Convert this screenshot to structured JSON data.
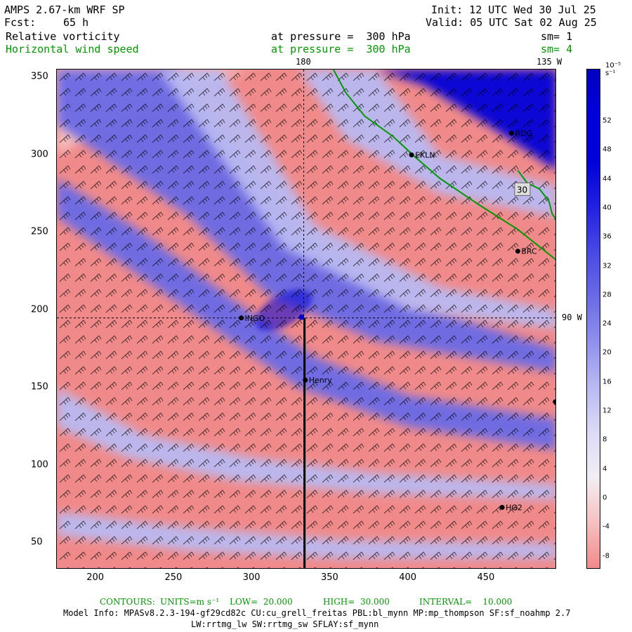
{
  "header": {
    "model": "AMPS 2.67-km WRF SP",
    "fcst_label": "Fcst:",
    "fcst_value": "65 h",
    "init": "Init: 12 UTC Wed 30 Jul 25",
    "valid": "Valid: 05 UTC Sat 02 Aug 25",
    "field1": "Relative vorticity",
    "field1_pressure": "at pressure =  300 hPa",
    "field1_sm": "sm= 1",
    "field2": "Horizontal wind speed",
    "field2_pressure": "at pressure =  300 hPa",
    "field2_sm": "sm= 4"
  },
  "map": {
    "lon_labels": {
      "lon180": "180",
      "lon135": "135 W",
      "lon90": "90 W"
    },
    "x_ticks": [
      "200",
      "250",
      "300",
      "350",
      "400",
      "450"
    ],
    "y_ticks": [
      "350",
      "300",
      "250",
      "200",
      "150",
      "100",
      "50"
    ],
    "x_range": [
      175,
      495
    ],
    "y_range": [
      33,
      355
    ],
    "stations": [
      {
        "label": "RDG",
        "x": 466,
        "y": 314
      },
      {
        "label": "EKLN",
        "x": 402,
        "y": 300
      },
      {
        "label": "BRC",
        "x": 470,
        "y": 238
      },
      {
        "label": "INGO",
        "x": 293,
        "y": 195
      },
      {
        "label": "Henry",
        "x": 334,
        "y": 155
      },
      {
        "label": "HG2",
        "x": 460,
        "y": 73
      }
    ],
    "box_label": "30",
    "colors": {
      "pos_strong": "#0000d8",
      "pos_mid": "#6a6ae6",
      "pos_light": "#b9b9f2",
      "neutral": "#f2eef4",
      "neg_light": "#f6c0c0",
      "neg": "#f08a8a",
      "coast": "#009900"
    }
  },
  "colorbar": {
    "units": "10⁻⁵ s⁻¹",
    "labels": [
      "52",
      "48",
      "44",
      "40",
      "36",
      "32",
      "28",
      "24",
      "20",
      "16",
      "12",
      "8",
      "4",
      "0",
      "-4",
      "-8"
    ]
  },
  "footer": {
    "contours_label": "CONTOURS:",
    "units": "UNITS=m s⁻¹",
    "low": "LOW=  20.000",
    "high": "HIGH=  30.000",
    "interval": "INTERVAL=    10.000",
    "model_info": "Model Info: MPASv8.2.3-194-gf29cd82c CU:cu_grell_freitas PBL:bl_mynn MP:mp_thompson SF:sf_noahmp 2.7",
    "model_info2": "LW:rrtmg_lw SW:rrtmg_sw SFLAY:sf_mynn"
  }
}
